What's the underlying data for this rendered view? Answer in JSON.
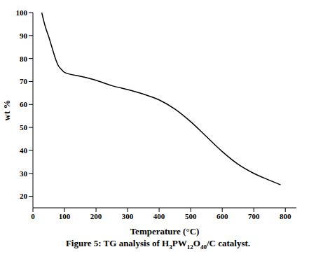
{
  "chart_data": {
    "type": "line",
    "title": "Figure 5: TG analysis of H3PW12O40/C catalyst.",
    "x_label": "Temperature (°C)",
    "y_label": "wt %",
    "color": "#000000",
    "x": [
      28,
      35,
      40,
      50,
      60,
      70,
      80,
      90,
      100,
      150,
      200,
      250,
      300,
      350,
      400,
      450,
      500,
      550,
      600,
      650,
      700,
      750,
      785
    ],
    "values": [
      100,
      96,
      93.5,
      89.5,
      85,
      80.5,
      77,
      75.3,
      74,
      72.3,
      70.5,
      68.2,
      66.5,
      64.5,
      62,
      58,
      52.5,
      46,
      39.5,
      34,
      30,
      27,
      25
    ],
    "xlim": [
      0,
      835
    ],
    "xticks": [
      0,
      100,
      200,
      300,
      400,
      500,
      600,
      700,
      800
    ],
    "ylim": [
      15,
      100
    ],
    "yticks": [
      20,
      30,
      40,
      50,
      60,
      70,
      80,
      90,
      100
    ],
    "grid": false
  }
}
